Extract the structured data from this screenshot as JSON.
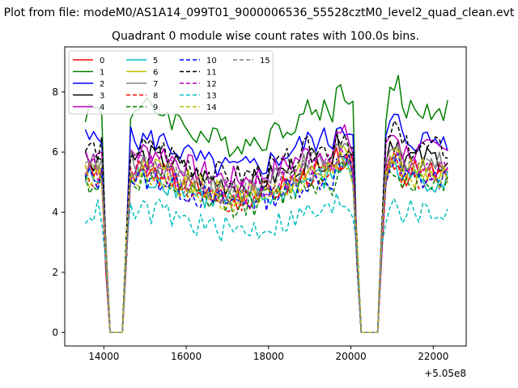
{
  "chart_data": {
    "type": "line",
    "suptitle": "Plot from file: modeM0/AS1A14_099T01_9000006536_55528cztM0_level2_quad_clean.evt",
    "title": "Quadrant 0 module wise count rates with 100.0s bins.",
    "xlabel": "",
    "ylabel": "",
    "x_offset_label": "+5.05e8",
    "xlim": [
      13050,
      22800
    ],
    "ylim": [
      -0.45,
      9.5
    ],
    "xticks": [
      14000,
      16000,
      18000,
      20000,
      22000
    ],
    "xtick_labels": [
      "14000",
      "16000",
      "18000",
      "20000",
      "22000"
    ],
    "yticks": [
      0,
      2,
      4,
      6,
      8
    ],
    "ytick_labels": [
      "0",
      "2",
      "4",
      "6",
      "8"
    ],
    "legend_position": "upper-left",
    "x_start": 13550,
    "x_step": 100,
    "gap_zero_ranges": [
      [
        14050,
        14500
      ],
      [
        20150,
        20750
      ]
    ],
    "series": [
      {
        "name": "0",
        "color": "#ff0000",
        "dash": "solid",
        "level": 5.3
      },
      {
        "name": "1",
        "color": "#008000",
        "dash": "solid",
        "level": 7.4
      },
      {
        "name": "2",
        "color": "#0000ff",
        "dash": "solid",
        "level": 6.4
      },
      {
        "name": "3",
        "color": "#000000",
        "dash": "solid",
        "level": 5.8
      },
      {
        "name": "4",
        "color": "#bf00bf",
        "dash": "solid",
        "level": 6.0
      },
      {
        "name": "5",
        "color": "#00bfbf",
        "dash": "solid",
        "level": 5.1
      },
      {
        "name": "6",
        "color": "#bfbf00",
        "dash": "solid",
        "level": 5.4
      },
      {
        "name": "7",
        "color": "#808080",
        "dash": "solid",
        "level": 5.6
      },
      {
        "name": "8",
        "color": "#ff0000",
        "dash": "dashed",
        "level": 5.2
      },
      {
        "name": "9",
        "color": "#008000",
        "dash": "dashed",
        "level": 5.0
      },
      {
        "name": "10",
        "color": "#0000ff",
        "dash": "dashed",
        "level": 5.1
      },
      {
        "name": "11",
        "color": "#000000",
        "dash": "dashed",
        "level": 6.1
      },
      {
        "name": "12",
        "color": "#bf00bf",
        "dash": "dashed",
        "level": 5.5
      },
      {
        "name": "13",
        "color": "#00bfbf",
        "dash": "dashed",
        "level": 4.0
      },
      {
        "name": "14",
        "color": "#bfbf00",
        "dash": "dashed",
        "level": 5.2
      },
      {
        "name": "15",
        "color": "#808080",
        "dash": "dashed",
        "level": 5.4
      }
    ]
  }
}
